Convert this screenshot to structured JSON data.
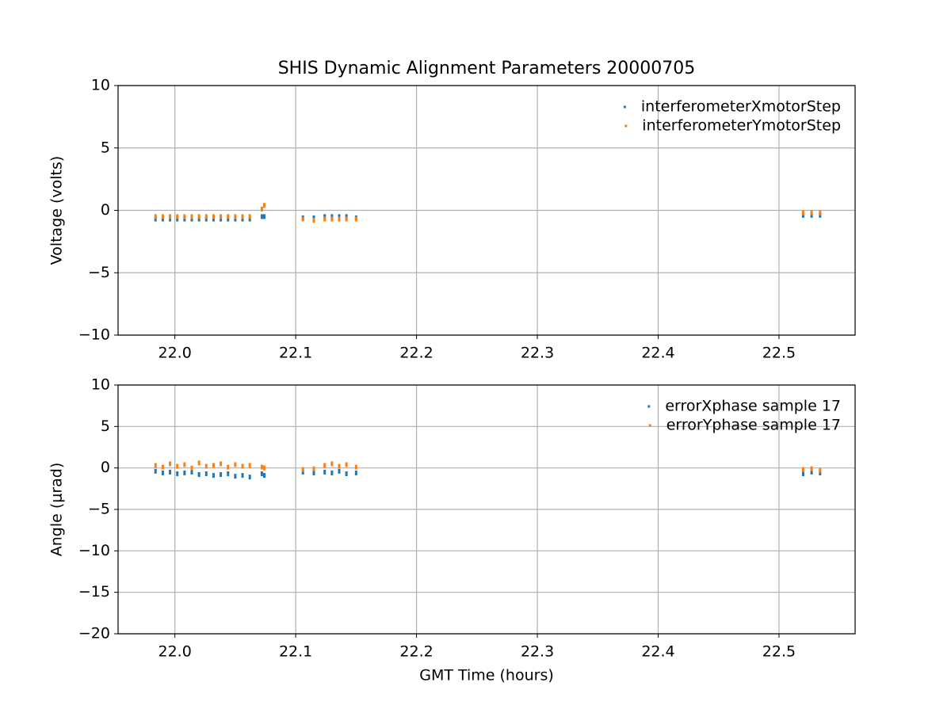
{
  "chart_data": [
    {
      "type": "scatter",
      "title": "SHIS Dynamic Alignment Parameters 20000705",
      "ylabel": "Voltage (volts)",
      "x": [
        21.984,
        21.99,
        21.996,
        22.002,
        22.008,
        22.014,
        22.02,
        22.026,
        22.032,
        22.038,
        22.044,
        22.05,
        22.056,
        22.062,
        22.072,
        22.074,
        22.106,
        22.115,
        22.124,
        22.13,
        22.136,
        22.142,
        22.15,
        22.52,
        22.527,
        22.534
      ],
      "series": [
        {
          "name": "interferometerXmotorStep",
          "color": "#1f77b4",
          "values": [
            -0.7,
            -0.7,
            -0.7,
            -0.7,
            -0.7,
            -0.7,
            -0.7,
            -0.7,
            -0.7,
            -0.7,
            -0.7,
            -0.7,
            -0.7,
            -0.7,
            -0.5,
            -0.5,
            -0.6,
            -0.6,
            -0.5,
            -0.5,
            -0.5,
            -0.5,
            -0.6,
            -0.4,
            -0.4,
            -0.4
          ]
        },
        {
          "name": "interferometerYmotorStep",
          "color": "#ff7f0e",
          "values": [
            -0.5,
            -0.5,
            -0.5,
            -0.5,
            -0.5,
            -0.5,
            -0.5,
            -0.5,
            -0.5,
            -0.5,
            -0.5,
            -0.5,
            -0.5,
            -0.5,
            0.1,
            0.4,
            -0.7,
            -0.8,
            -0.7,
            -0.7,
            -0.7,
            -0.7,
            -0.7,
            -0.2,
            -0.2,
            -0.2
          ]
        }
      ],
      "xlim": [
        21.953,
        22.563
      ],
      "ylim": [
        -10,
        10
      ],
      "xticks": [
        {
          "value": 22,
          "label": "22.0"
        },
        22.1,
        22.2,
        22.3,
        22.4,
        22.5
      ],
      "yticks": [
        {
          "value": -10,
          "label": "−10"
        },
        {
          "value": -5,
          "label": "−5"
        },
        0,
        5,
        10
      ],
      "grid": true,
      "legend": "upper right"
    },
    {
      "type": "scatter",
      "ylabel": "Angle (μrad)",
      "xlabel": "GMT Time (hours)",
      "x": [
        21.984,
        21.99,
        21.996,
        22.002,
        22.008,
        22.014,
        22.02,
        22.026,
        22.032,
        22.038,
        22.044,
        22.05,
        22.056,
        22.062,
        22.072,
        22.074,
        22.106,
        22.115,
        22.124,
        22.13,
        22.136,
        22.142,
        22.15,
        22.52,
        22.527,
        22.534
      ],
      "series": [
        {
          "name": "errorXphase sample 17",
          "color": "#1f77b4",
          "values": [
            -0.4,
            -0.6,
            -0.5,
            -0.7,
            -0.6,
            -0.5,
            -0.8,
            -0.7,
            -0.9,
            -0.8,
            -0.7,
            -1.0,
            -0.9,
            -1.1,
            -0.7,
            -0.9,
            -0.5,
            -0.6,
            -0.5,
            -0.6,
            -0.4,
            -0.7,
            -0.6,
            -0.7,
            -0.5,
            -0.6
          ]
        },
        {
          "name": "errorYphase sample 17",
          "color": "#ff7f0e",
          "values": [
            0.3,
            0.1,
            0.5,
            0.2,
            0.4,
            0.0,
            0.6,
            0.2,
            0.3,
            0.5,
            0.1,
            0.4,
            0.2,
            0.3,
            0.1,
            0.0,
            -0.2,
            -0.1,
            0.3,
            0.5,
            0.2,
            0.4,
            0.1,
            -0.2,
            -0.1,
            -0.3
          ]
        }
      ],
      "xlim": [
        21.953,
        22.563
      ],
      "ylim": [
        -20,
        10
      ],
      "xticks": [
        {
          "value": 22,
          "label": "22.0"
        },
        22.1,
        22.2,
        22.3,
        22.4,
        22.5
      ],
      "yticks": [
        {
          "value": -20,
          "label": "−20"
        },
        {
          "value": -15,
          "label": "−15"
        },
        {
          "value": -10,
          "label": "−10"
        },
        {
          "value": -5,
          "label": "−5"
        },
        0,
        5,
        10
      ],
      "grid": true,
      "legend": "upper right"
    }
  ]
}
